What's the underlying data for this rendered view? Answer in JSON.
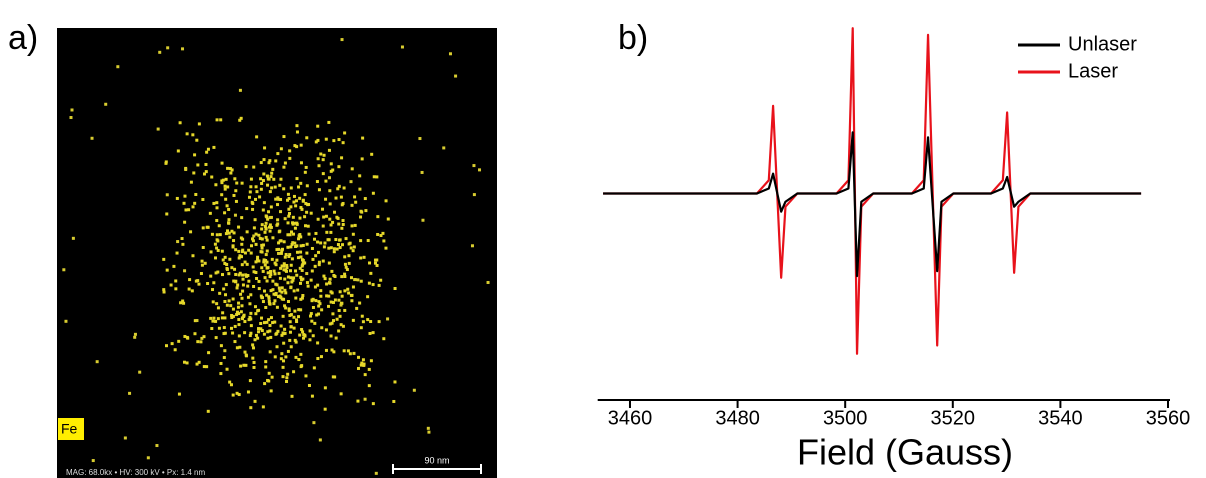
{
  "panel_a": {
    "label": "a)",
    "element": "Fe",
    "scale_bar": "90 nm",
    "info": "MAG: 68.0kx • HV: 300 kV • Px: 1.4 nm"
  },
  "chart_data": {
    "type": "line",
    "label": "b)",
    "x_label": "Field (Gauss)",
    "x": [
      3455,
      3483.6,
      3485.8,
      3486.6,
      3488.1,
      3488.9,
      3491.1,
      3498.4,
      3500.6,
      3501.4,
      3502.2,
      3503.0,
      3505.2,
      3512.4,
      3514.6,
      3515.4,
      3517.1,
      3517.9,
      3520.1,
      3527.1,
      3529.3,
      3530.1,
      3531.4,
      3532.2,
      3534.4,
      3555
    ],
    "series": [
      {
        "name": "Unlaser",
        "color": "#000000",
        "values": [
          0,
          0,
          0.03,
          0.12,
          -0.11,
          -0.05,
          0,
          0,
          0.03,
          0.37,
          -0.5,
          -0.05,
          0,
          0,
          0.03,
          0.34,
          -0.47,
          -0.05,
          0,
          0,
          0.03,
          0.1,
          -0.08,
          -0.05,
          0,
          0
        ]
      },
      {
        "name": "Laser",
        "color": "#e8121b",
        "values": [
          0,
          0,
          0.08,
          0.53,
          -0.51,
          -0.08,
          0,
          0,
          0.08,
          1.0,
          -0.97,
          -0.08,
          0,
          0,
          0.08,
          0.96,
          -0.92,
          -0.08,
          0,
          0,
          0.08,
          0.49,
          -0.48,
          -0.08,
          0,
          0
        ]
      }
    ],
    "xlim": [
      3454,
      3560
    ],
    "xticks": [
      3460,
      3480,
      3500,
      3520,
      3540,
      3560
    ],
    "ylim": [
      -1.25,
      1.05
    ],
    "legend": "upper right"
  }
}
